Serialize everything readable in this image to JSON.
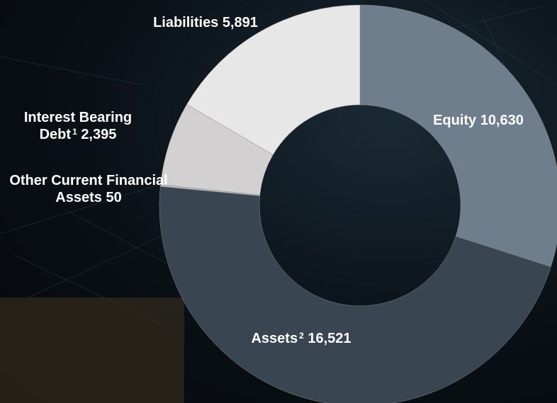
{
  "chart_data": {
    "type": "donut",
    "categories": [
      "Equity",
      "Assets",
      "Other Current Financial Assets",
      "Interest Bearing Debt",
      "Liabilities"
    ],
    "values": [
      10630,
      16521,
      50,
      2395,
      5891
    ],
    "value_labels": [
      "10,630",
      "16,521",
      "50",
      "2,395",
      "5,891"
    ],
    "footnotes": [
      null,
      "2",
      null,
      "1",
      null
    ],
    "colors": [
      "#6f7e8d",
      "#394550",
      "#bdbdbd",
      "#d2d0d0",
      "#e7e7e7"
    ]
  }
}
